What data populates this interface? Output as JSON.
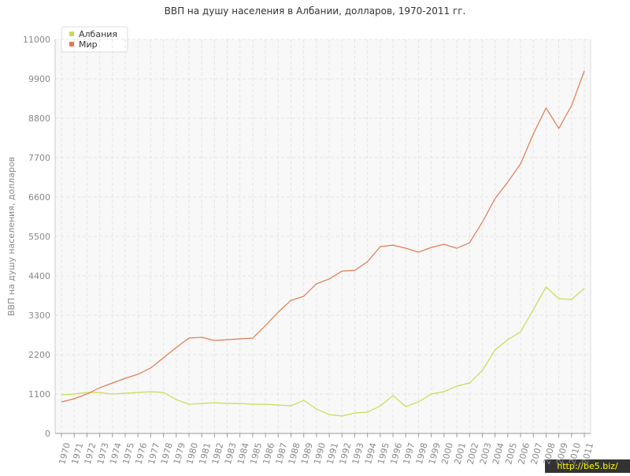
{
  "chart_data": {
    "type": "line",
    "title": "ВВП на душу населения в Албании, долларов, 1970-2011 гг.",
    "y_label": "ВВП на душу населения, долларов",
    "watermark": "http://be5.biz/",
    "categories": [
      "1970",
      "1971",
      "1972",
      "1973",
      "1974",
      "1975",
      "1976",
      "1977",
      "1978",
      "1979",
      "1980",
      "1981",
      "1982",
      "1983",
      "1984",
      "1985",
      "1986",
      "1987",
      "1988",
      "1989",
      "1990",
      "1991",
      "1992",
      "1993",
      "1994",
      "1995",
      "1996",
      "1997",
      "1998",
      "1999",
      "2000",
      "2001",
      "2002",
      "2003",
      "2004",
      "2005",
      "2006",
      "2007",
      "2008",
      "2009",
      "2010",
      "2011"
    ],
    "series": [
      {
        "name": "Албания",
        "color": "#c8dc50",
        "values": [
          1078,
          1100,
          1144,
          1144,
          1100,
          1122,
          1144,
          1166,
          1144,
          946,
          814,
          836,
          858,
          836,
          836,
          814,
          814,
          792,
          770,
          924,
          682,
          528,
          484,
          572,
          594,
          770,
          1056,
          748,
          880,
          1100,
          1166,
          1320,
          1408,
          1760,
          2332,
          2618,
          2838,
          3454,
          4092,
          3762,
          3740,
          4048
        ]
      },
      {
        "name": "Мир",
        "color": "#e07a50",
        "values": [
          880,
          968,
          1100,
          1276,
          1408,
          1540,
          1650,
          1826,
          2112,
          2398,
          2662,
          2684,
          2596,
          2618,
          2640,
          2662,
          3014,
          3388,
          3718,
          3828,
          4180,
          4312,
          4532,
          4554,
          4796,
          5214,
          5258,
          5170,
          5060,
          5192,
          5280,
          5170,
          5324,
          5896,
          6556,
          7018,
          7524,
          8360,
          9086,
          8514,
          9152,
          10120
        ]
      }
    ],
    "ylim": [
      0,
      11000
    ],
    "yticks": [
      0,
      1100,
      2200,
      3300,
      4400,
      5500,
      6600,
      7700,
      8800,
      9900,
      11000
    ],
    "grid": true
  }
}
